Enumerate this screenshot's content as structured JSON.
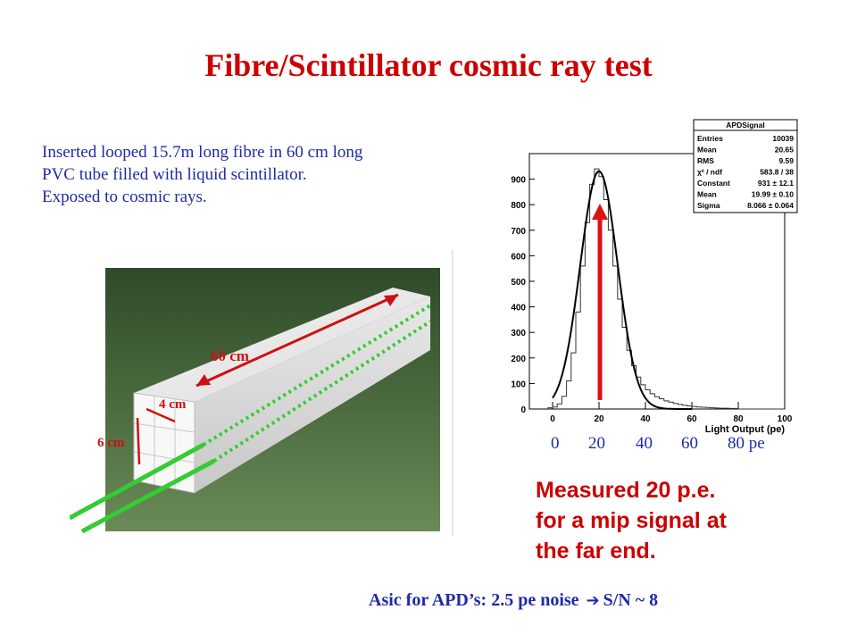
{
  "slide": {
    "title": "Fibre/Scintillator cosmic ray test",
    "intro_lines": [
      "Inserted looped 15.7m long fibre in 60 cm long",
      "PVC tube filled with liquid scintillator.",
      "Exposed to cosmic rays."
    ],
    "photo": {
      "length_label": "60 cm",
      "width_label": "4 cm",
      "height_label": "6 cm"
    },
    "x_overlay_labels": [
      "0",
      "20",
      "40",
      "60",
      "80 pe"
    ],
    "measured_lines": [
      "Measured 20 p.e.",
      "for a mip signal at",
      "the far end."
    ],
    "asic_note": {
      "before": "Asic for APD’s: 2.5 pe noise",
      "arrow_icon": "right-arrow-icon",
      "after": "S/N ~ 8"
    },
    "colors": {
      "title": "#cc0000",
      "body_text": "#1f2aa6",
      "arrow": "#dd1111",
      "fibre": "#33cc33"
    }
  },
  "stats": {
    "title": "APDSignal",
    "rows": [
      {
        "key": "Entries",
        "value": "10039"
      },
      {
        "key": "Mean",
        "value": "20.65"
      },
      {
        "key": "RMS",
        "value": "9.59"
      },
      {
        "key": "χ² / ndf",
        "value": "583.8 / 38"
      },
      {
        "key": "Constant",
        "value": "931 ± 12.1"
      },
      {
        "key": "Mean",
        "value": "19.99 ± 0.10"
      },
      {
        "key": "Sigma",
        "value": "8.066 ± 0.064"
      }
    ]
  },
  "chart_data": {
    "type": "bar",
    "title": "APDSignal",
    "xlabel": "Light Output (pe)",
    "ylabel": "",
    "xlim": [
      -10,
      100
    ],
    "ylim": [
      0,
      1000
    ],
    "x_ticks": [
      "0",
      "20",
      "40",
      "60",
      "80",
      "100"
    ],
    "y_ticks": [
      "0",
      "100",
      "200",
      "300",
      "400",
      "500",
      "600",
      "700",
      "800",
      "900"
    ],
    "grid": false,
    "legend": "top-right",
    "histogram": {
      "bin_width": 2,
      "x": [
        -1,
        1,
        3,
        5,
        7,
        9,
        11,
        13,
        15,
        17,
        19,
        21,
        23,
        25,
        27,
        29,
        31,
        33,
        35,
        37,
        39,
        41,
        43,
        45,
        47,
        49,
        51,
        53,
        55,
        57,
        59,
        61,
        63,
        65,
        67,
        69,
        71,
        73,
        75,
        77,
        79
      ],
      "values": [
        5,
        8,
        20,
        50,
        110,
        220,
        380,
        560,
        730,
        880,
        940,
        910,
        820,
        700,
        560,
        430,
        320,
        230,
        170,
        125,
        95,
        75,
        60,
        48,
        40,
        32,
        27,
        22,
        18,
        15,
        12,
        10,
        8,
        7,
        6,
        5,
        4,
        3,
        3,
        2,
        2
      ]
    },
    "fit": {
      "name": "gaus",
      "constant": 931,
      "mean": 19.99,
      "sigma": 8.066
    }
  }
}
